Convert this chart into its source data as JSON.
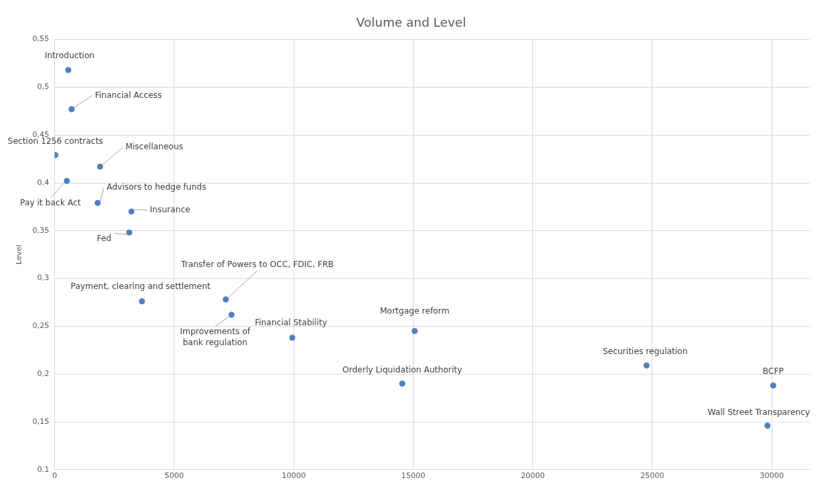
{
  "chart_data": {
    "type": "scatter",
    "title": "Volume and Level",
    "ylabel": "Level",
    "x": [
      570,
      710,
      30,
      1900,
      510,
      1800,
      3210,
      3120,
      3650,
      7160,
      7400,
      9940,
      15060,
      14540,
      24760,
      30060,
      29820
    ],
    "series": [
      {
        "color": "#4f81bd",
        "values": [
          0.518,
          0.477,
          0.429,
          0.417,
          0.402,
          0.379,
          0.37,
          0.348,
          0.276,
          0.278,
          0.262,
          0.238,
          0.245,
          0.19,
          0.209,
          0.188,
          0.146
        ]
      }
    ],
    "annotations": [
      {
        "text": "Introduction",
        "x": 570,
        "y": 0.518
      },
      {
        "text": "Financial Access",
        "x": 710,
        "y": 0.477
      },
      {
        "text": "Section 1256 contracts",
        "x": 30,
        "y": 0.429
      },
      {
        "text": "Miscellaneous",
        "x": 1900,
        "y": 0.417
      },
      {
        "text": "Pay it back Act",
        "x": 510,
        "y": 0.402
      },
      {
        "text": "Advisors to hedge funds",
        "x": 1800,
        "y": 0.379
      },
      {
        "text": "Insurance",
        "x": 3210,
        "y": 0.37
      },
      {
        "text": "Fed",
        "x": 3120,
        "y": 0.348
      },
      {
        "text": "Payment, clearing and settlement",
        "x": 3650,
        "y": 0.276
      },
      {
        "text": "Transfer of Powers to OCC, FDIC, FRB",
        "x": 7160,
        "y": 0.278
      },
      {
        "text": "Improvements of bank regulation",
        "x": 7400,
        "y": 0.262
      },
      {
        "text": "Financial Stability",
        "x": 9940,
        "y": 0.238
      },
      {
        "text": "Mortgage reform",
        "x": 15060,
        "y": 0.245
      },
      {
        "text": "Orderly Liquidation Authority",
        "x": 14540,
        "y": 0.19
      },
      {
        "text": "Securities regulation",
        "x": 24760,
        "y": 0.209
      },
      {
        "text": "BCFP",
        "x": 30060,
        "y": 0.188
      },
      {
        "text": "Wall Street Transparency",
        "x": 29820,
        "y": 0.146
      }
    ],
    "xlim": [
      0,
      31600
    ],
    "xticks": [
      0,
      5000,
      10000,
      15000,
      20000,
      25000,
      30000
    ],
    "ylim": [
      0.1,
      0.55
    ],
    "yticks": [
      {
        "value": 0.1,
        "label": "0,1"
      },
      {
        "value": 0.15,
        "label": "0,15"
      },
      {
        "value": 0.2,
        "label": "0,2"
      },
      {
        "value": 0.25,
        "label": "0,25"
      },
      {
        "value": 0.3,
        "label": "0,3"
      },
      {
        "value": 0.35,
        "label": "0,35"
      },
      {
        "value": 0.4,
        "label": "0,4"
      },
      {
        "value": 0.45,
        "label": "0,45"
      },
      {
        "value": 0.5,
        "label": "0,5"
      },
      {
        "value": 0.55,
        "label": "0,55"
      }
    ],
    "grid": true,
    "marker": "circle",
    "legend": false
  }
}
